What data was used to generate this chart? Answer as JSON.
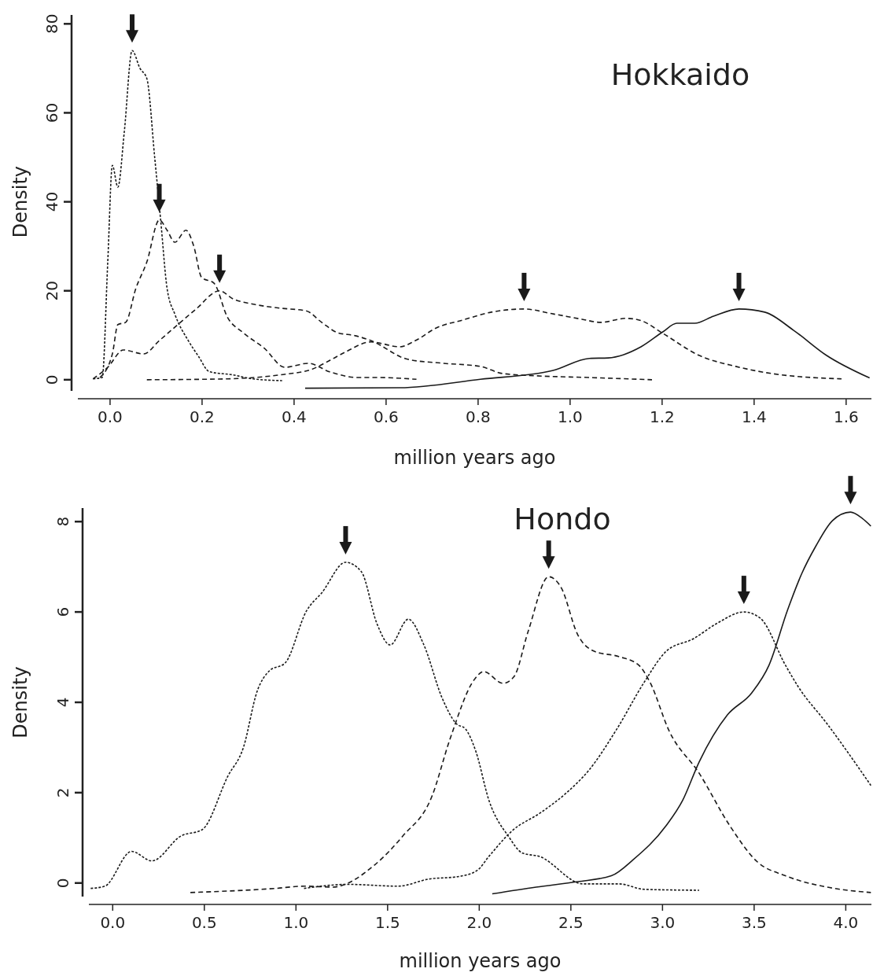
{
  "chart_data": [
    {
      "type": "line",
      "title": "Hokkaido",
      "xlabel": "million years ago",
      "ylabel": "Density",
      "xlim": [
        -0.07,
        1.655
      ],
      "ylim": [
        -2.5,
        82
      ],
      "xticks": [
        {
          "value": 0,
          "label": "0.0"
        },
        {
          "value": 0.2,
          "label": "0.2"
        },
        {
          "value": 0.4,
          "label": "0.4"
        },
        {
          "value": 0.6,
          "label": "0.6"
        },
        {
          "value": 0.8,
          "label": "0.8"
        },
        {
          "value": 1.0,
          "label": "1.0"
        },
        {
          "value": 1.2,
          "label": "1.2"
        },
        {
          "value": 1.4,
          "label": "1.4"
        },
        {
          "value": 1.6,
          "label": "1.6"
        }
      ],
      "yticks": [
        0,
        20,
        40,
        60,
        80
      ],
      "series": [
        {
          "color": "#1a1a1a",
          "line_style": "dotted",
          "x": [
            -0.037,
            -0.017,
            -0.005,
            0.005,
            0.017,
            0.031,
            0.048,
            0.065,
            0.08,
            0.097,
            0.11,
            0.124,
            0.141,
            0.17,
            0.192,
            0.216,
            0.267,
            0.31,
            0.374
          ],
          "values": [
            0.2,
            0.5,
            26.5,
            48.2,
            43.3,
            55.8,
            74,
            70,
            67.7,
            50,
            35.9,
            20.5,
            14.7,
            8.8,
            5.3,
            1.8,
            1.1,
            0.2,
            -0.2
          ]
        },
        {
          "color": "#1a1a1a",
          "line_style": "dashed",
          "x": [
            -0.022,
            0.005,
            0.017,
            0.034,
            0.056,
            0.08,
            0.107,
            0.124,
            0.141,
            0.165,
            0.182,
            0.199,
            0.226,
            0.255,
            0.289,
            0.335,
            0.38,
            0.431,
            0.477,
            0.54,
            0.582,
            0.666
          ],
          "values": [
            0.5,
            5.8,
            12.4,
            12.9,
            20.5,
            26.5,
            35.9,
            33.6,
            30.9,
            33.6,
            30,
            23,
            21.7,
            14.1,
            10.6,
            7.1,
            2.8,
            3.7,
            1.8,
            0.5,
            0.5,
            0.1
          ]
        },
        {
          "color": "#1a1a1a",
          "line_style": "dashed",
          "x": [
            -0.037,
            -0.005,
            0.029,
            0.073,
            0.107,
            0.153,
            0.187,
            0.238,
            0.267,
            0.311,
            0.369,
            0.426,
            0.46,
            0.494,
            0.533,
            0.567,
            0.647,
            0.725,
            0.805,
            0.853,
            0.924,
            1.042,
            1.178
          ],
          "values": [
            0.2,
            2.8,
            6.7,
            5.8,
            8.8,
            12.9,
            15.9,
            20,
            18.2,
            17,
            16.1,
            15.5,
            12.9,
            10.6,
            9.9,
            8.8,
            4.6,
            3.7,
            3,
            1.4,
            0.9,
            0.5,
            0
          ]
        },
        {
          "color": "#1a1a1a",
          "line_style": "dashed",
          "x": [
            0.08,
            0.255,
            0.369,
            0.437,
            0.482,
            0.511,
            0.567,
            0.63,
            0.662,
            0.71,
            0.766,
            0.829,
            0.9,
            0.963,
            1.026,
            1.066,
            1.122,
            1.154,
            1.202,
            1.28,
            1.36,
            1.438,
            1.59
          ],
          "values": [
            0,
            0.2,
            1.1,
            2.3,
            4.6,
            6.2,
            8.5,
            7.4,
            8.7,
            11.7,
            13.4,
            15.2,
            15.9,
            14.8,
            13.6,
            12.9,
            13.8,
            13.3,
            10.4,
            5.5,
            3,
            1.4,
            0.2
          ]
        },
        {
          "color": "#1a1a1a",
          "line_style": "solid",
          "x": [
            0.424,
            0.63,
            0.805,
            0.963,
            1.042,
            1.083,
            1.154,
            1.202,
            1.232,
            1.271,
            1.312,
            1.367,
            1.423,
            1.486,
            1.557,
            1.651
          ],
          "values": [
            -1.9,
            -1.8,
            0.1,
            2.1,
            4.8,
            4.9,
            7.4,
            10.8,
            12.7,
            12.7,
            14.3,
            15.9,
            15.2,
            11.1,
            5.5,
            0.4
          ]
        }
      ]
    },
    {
      "type": "line",
      "title": "Hondo",
      "xlabel": "million years ago",
      "ylabel": "Density",
      "xlim": [
        -0.13,
        4.14
      ],
      "ylim": [
        -0.3,
        8.3
      ],
      "xticks": [
        {
          "value": 0,
          "label": "0.0"
        },
        {
          "value": 0.5,
          "label": "0.5"
        },
        {
          "value": 1.0,
          "label": "1.0"
        },
        {
          "value": 1.5,
          "label": "1.5"
        },
        {
          "value": 2.0,
          "label": "2.0"
        },
        {
          "value": 2.5,
          "label": "2.5"
        },
        {
          "value": 3.0,
          "label": "3.0"
        },
        {
          "value": 3.5,
          "label": "3.5"
        },
        {
          "value": 4.0,
          "label": "4.0"
        }
      ],
      "yticks": [
        0,
        2,
        4,
        6,
        8
      ],
      "series": [
        {
          "color": "#1a1a1a",
          "line_style": "dotted",
          "x": [
            -0.12,
            -0.043,
            0.103,
            0.214,
            0.372,
            0.488,
            0.629,
            0.714,
            0.787,
            0.856,
            0.941,
            1.057,
            1.142,
            1.271,
            1.357,
            1.442,
            1.514,
            1.613,
            1.698,
            1.797,
            1.874,
            1.925,
            1.981,
            2.053,
            2.16,
            2.237,
            2.327,
            2.567,
            2.764,
            2.9,
            3.2
          ],
          "values": [
            -0.12,
            -0.07,
            0.7,
            0.49,
            1.04,
            1.18,
            2.37,
            3.01,
            4.23,
            4.7,
            4.87,
            6.02,
            6.43,
            7.1,
            6.89,
            5.74,
            5.27,
            5.84,
            5.27,
            4.1,
            3.53,
            3.41,
            2.92,
            1.83,
            1.03,
            0.66,
            0.59,
            -0.02,
            -0.02,
            -0.14,
            -0.16
          ]
        },
        {
          "color": "#1a1a1a",
          "line_style": "dashed",
          "x": [
            0.424,
            0.886,
            1.044,
            1.198,
            1.429,
            1.583,
            1.741,
            1.84,
            1.976,
            2.024,
            2.13,
            2.19,
            2.267,
            2.379,
            2.447,
            2.537,
            2.627,
            2.764,
            2.871,
            2.931,
            3.037,
            3.2,
            3.367,
            3.517,
            3.671,
            3.897,
            4.137
          ],
          "values": [
            -0.21,
            -0.12,
            -0.07,
            -0.09,
            0.4,
            1.04,
            1.91,
            3.18,
            4.52,
            4.68,
            4.42,
            4.57,
            5.57,
            6.78,
            6.54,
            5.5,
            5.13,
            5.01,
            4.82,
            4.45,
            3.36,
            2.43,
            1.27,
            0.47,
            0.16,
            -0.09,
            -0.21
          ]
        },
        {
          "color": "#1a1a1a",
          "line_style": "dotted",
          "x": [
            1.044,
            1.283,
            1.557,
            1.728,
            1.882,
            1.989,
            2.053,
            2.178,
            2.34,
            2.477,
            2.597,
            2.751,
            2.901,
            3.02,
            3.17,
            3.294,
            3.444,
            3.534,
            3.671,
            3.743,
            3.897,
            4.137
          ],
          "values": [
            -0.12,
            -0.03,
            -0.07,
            0.09,
            0.14,
            0.28,
            0.59,
            1.15,
            1.57,
            2,
            2.49,
            3.41,
            4.45,
            5.13,
            5.41,
            5.74,
            6,
            5.86,
            4.82,
            4.33,
            3.53,
            2.16
          ]
        },
        {
          "color": "#1a1a1a",
          "line_style": "solid",
          "x": [
            2.071,
            2.31,
            2.537,
            2.721,
            2.841,
            3.02,
            3.11,
            3.2,
            3.354,
            3.487,
            3.581,
            3.683,
            3.76,
            3.837,
            3.927,
            4.026,
            4.09,
            4.137
          ],
          "values": [
            -0.24,
            -0.09,
            0.03,
            0.16,
            0.52,
            1.27,
            1.83,
            2.68,
            3.72,
            4.21,
            4.82,
            6.05,
            6.85,
            7.46,
            8.02,
            8.21,
            8.07,
            7.9
          ]
        }
      ]
    }
  ]
}
